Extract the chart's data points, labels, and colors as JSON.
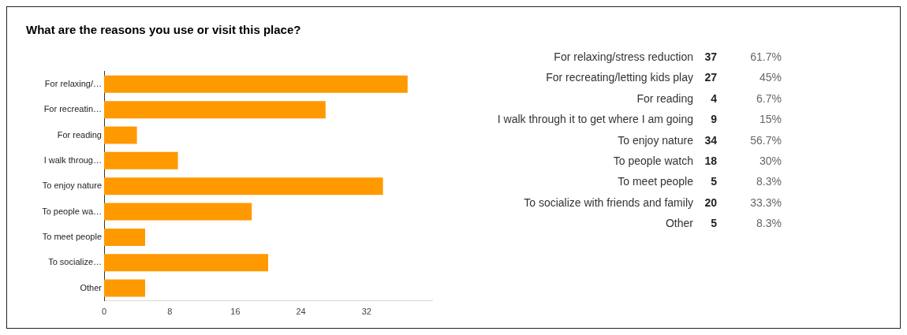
{
  "chart_data": [
    {
      "type": "bar",
      "orientation": "horizontal",
      "title": "What are the reasons you use or visit this place?",
      "categories": [
        "For relaxing/…",
        "For recreatin…",
        "For reading",
        "I walk throug…",
        "To enjoy nature",
        "To people wa…",
        "To meet people",
        "To socialize…",
        "Other"
      ],
      "values": [
        37,
        27,
        4,
        9,
        34,
        18,
        5,
        20,
        5
      ],
      "color": "#ff9900",
      "xlim": [
        0,
        40
      ],
      "xticks": [
        0,
        8,
        16,
        24,
        32
      ]
    },
    {
      "type": "other",
      "annotations": [
        "For relaxing/stress reduction",
        "37",
        "61.7%",
        "For recreating/letting kids play",
        "27",
        "45%",
        "For reading",
        "4",
        "6.7%",
        "I walk through it to get where I am going",
        "9",
        "15%",
        "To enjoy nature",
        "34",
        "56.7%",
        "To people watch",
        "18",
        "30%",
        "To meet people",
        "5",
        "8.3%",
        "To socialize with friends and family",
        "20",
        "33.3%",
        "Other",
        "5",
        "8.3%"
      ]
    }
  ]
}
